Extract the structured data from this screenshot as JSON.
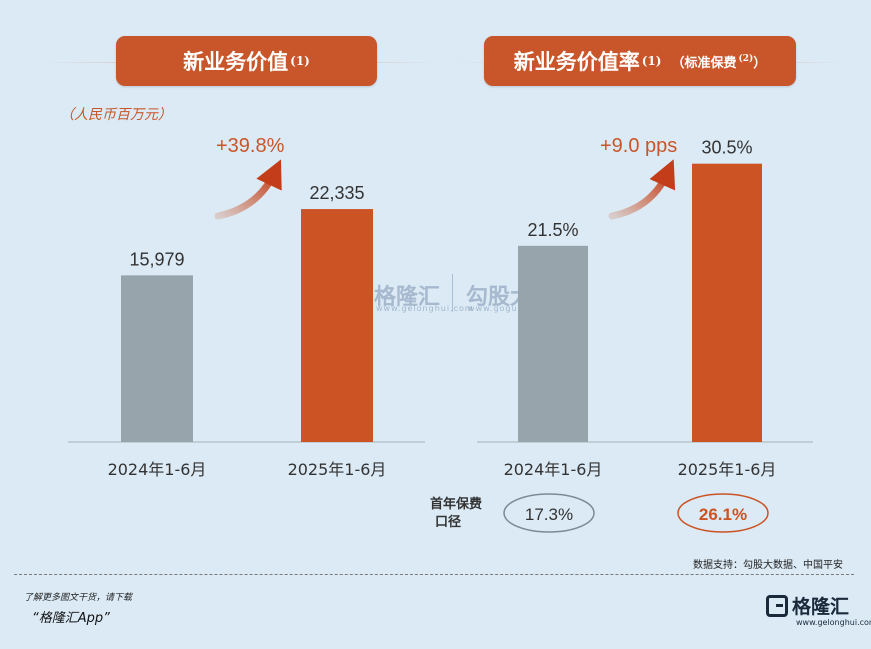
{
  "left_title": {
    "text": "新业务价值",
    "sup": "(1)"
  },
  "right_title": {
    "text": "新业务价值率",
    "sup": "(1)",
    "note": "（标准保费",
    "note_sup": "(2)",
    "note_close": "）"
  },
  "unit": "（人民币百万元）",
  "chart_data": [
    {
      "type": "bar",
      "categories": [
        "2024年1-6月",
        "2025年1-6月"
      ],
      "values": [
        15979,
        22335
      ],
      "value_labels": [
        "15,979",
        "22,335"
      ],
      "colors": [
        "#97a4ab",
        "#cb5324"
      ],
      "growth_label": "+39.8%",
      "ylim": [
        0,
        28000
      ]
    },
    {
      "type": "bar",
      "categories": [
        "2024年1-6月",
        "2025年1-6月"
      ],
      "values": [
        21.5,
        30.5
      ],
      "value_labels": [
        "21.5%",
        "30.5%"
      ],
      "colors": [
        "#97a4ab",
        "#cb5324"
      ],
      "growth_label": "+9.0 pps",
      "ylim": [
        0,
        32
      ],
      "extra": {
        "label_line1": "首年保费",
        "label_line2": "口径",
        "values": [
          "17.3%",
          "26.1%"
        ]
      }
    }
  ],
  "source": "数据支持：勾股大数据、中国平安",
  "footer": {
    "download_text": "了解更多图文干货，请下载",
    "app_name": "“格隆汇App”"
  },
  "logo": {
    "name": "格隆汇",
    "url": "www.gelonghui.com"
  },
  "watermark": {
    "left": "格隆汇",
    "left_url": "www.gelonghui.com",
    "right": "勾股大数据",
    "right_url": "www.gogudata.com"
  },
  "colors": {
    "accent": "#c9562a",
    "grey_bar": "#97a4ab",
    "background": "#dbeaf5"
  }
}
